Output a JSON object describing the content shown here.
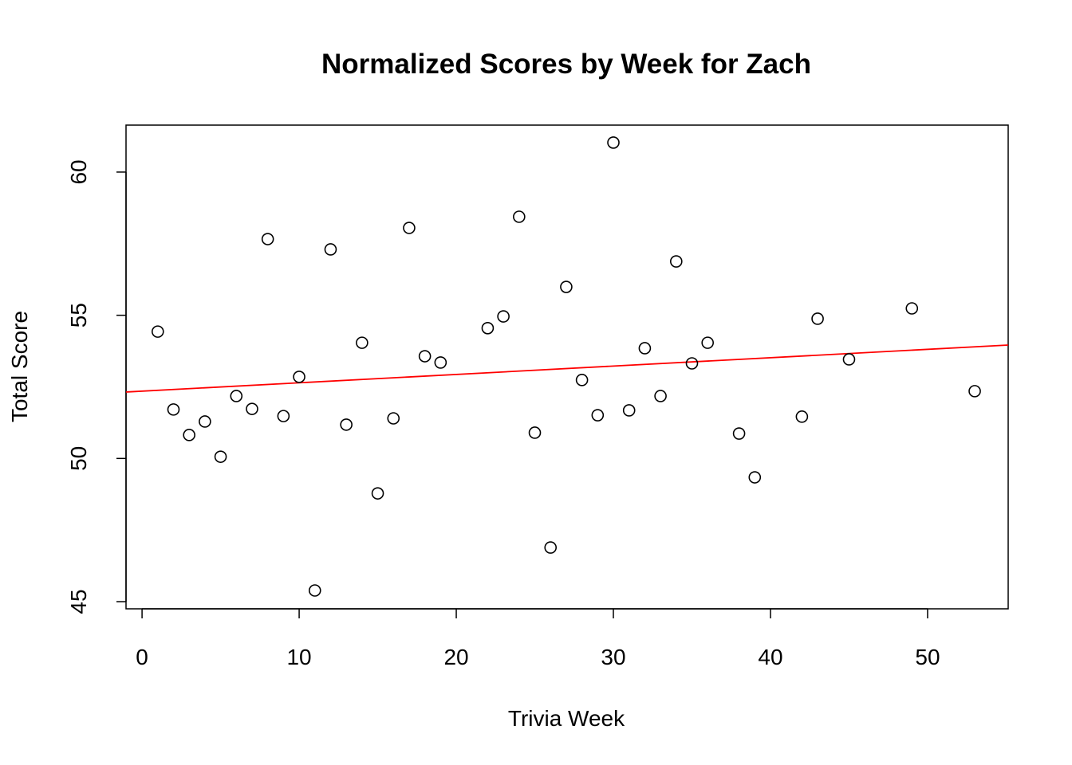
{
  "chart_data": {
    "type": "scatter",
    "title": "Normalized Scores by Week for Zach",
    "xlabel": "Trivia Week",
    "ylabel": "Total Score",
    "xlim": [
      -1.02,
      55.13
    ],
    "ylim": [
      44.75,
      61.64
    ],
    "xticks": [
      0,
      10,
      20,
      30,
      40,
      50
    ],
    "yticks": [
      45,
      50,
      55,
      60
    ],
    "grid": false,
    "point_style": "open-circle",
    "point_color": "#000000",
    "points": [
      {
        "x": 1,
        "y": 54.43
      },
      {
        "x": 2,
        "y": 51.71
      },
      {
        "x": 3,
        "y": 50.82
      },
      {
        "x": 4,
        "y": 51.29
      },
      {
        "x": 5,
        "y": 50.06
      },
      {
        "x": 6,
        "y": 52.18
      },
      {
        "x": 7,
        "y": 51.73
      },
      {
        "x": 8,
        "y": 57.66
      },
      {
        "x": 9,
        "y": 51.48
      },
      {
        "x": 10,
        "y": 52.85
      },
      {
        "x": 11,
        "y": 45.39
      },
      {
        "x": 12,
        "y": 57.3
      },
      {
        "x": 13,
        "y": 51.18
      },
      {
        "x": 14,
        "y": 54.04
      },
      {
        "x": 15,
        "y": 48.78
      },
      {
        "x": 16,
        "y": 51.4
      },
      {
        "x": 17,
        "y": 58.05
      },
      {
        "x": 18,
        "y": 53.57
      },
      {
        "x": 19,
        "y": 53.35
      },
      {
        "x": 22,
        "y": 54.55
      },
      {
        "x": 23,
        "y": 54.96
      },
      {
        "x": 24,
        "y": 58.44
      },
      {
        "x": 25,
        "y": 50.9
      },
      {
        "x": 26,
        "y": 46.89
      },
      {
        "x": 27,
        "y": 55.99
      },
      {
        "x": 28,
        "y": 52.74
      },
      {
        "x": 29,
        "y": 51.51
      },
      {
        "x": 30,
        "y": 61.03
      },
      {
        "x": 31,
        "y": 51.68
      },
      {
        "x": 32,
        "y": 53.85
      },
      {
        "x": 33,
        "y": 52.18
      },
      {
        "x": 34,
        "y": 56.88
      },
      {
        "x": 35,
        "y": 53.32
      },
      {
        "x": 36,
        "y": 54.04
      },
      {
        "x": 38,
        "y": 50.87
      },
      {
        "x": 39,
        "y": 49.34
      },
      {
        "x": 42,
        "y": 51.46
      },
      {
        "x": 43,
        "y": 54.88
      },
      {
        "x": 45,
        "y": 53.46
      },
      {
        "x": 49,
        "y": 55.24
      },
      {
        "x": 53,
        "y": 52.35
      }
    ],
    "trend_line": {
      "intercept": 52.35,
      "slope": 0.0292,
      "color": "#ff0000"
    }
  }
}
